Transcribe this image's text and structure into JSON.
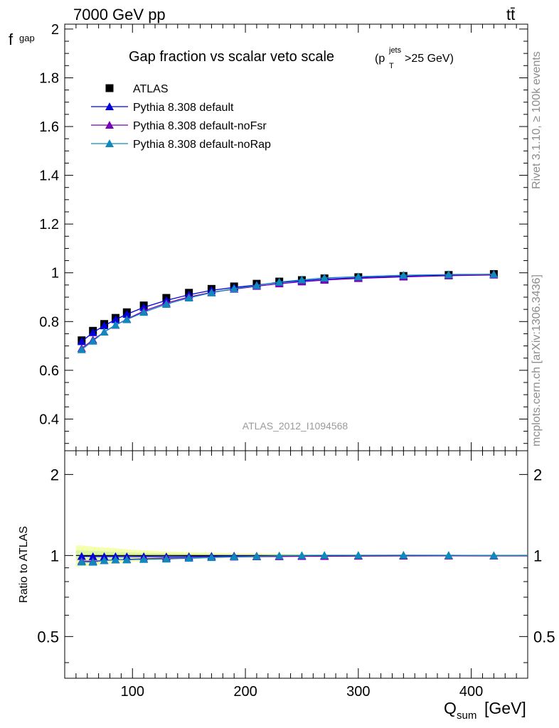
{
  "header": {
    "beam": "7000 GeV pp",
    "process": "tt̄"
  },
  "side_labels": {
    "rivet": "Rivet 3.1.10, ≥ 100k events",
    "mcplots": "mcplots.cern.ch [arXiv:1306.3436]"
  },
  "analysis_id": "ATLAS_2012_I1094568",
  "colors": {
    "data": "#000000",
    "default": "#0000dd",
    "noFsr": "#7700bb",
    "noRap": "#1188bb",
    "band_outer": "#f5ffb0",
    "band_inner": "#d8f7a0"
  },
  "chart_data": [
    {
      "type": "scatter",
      "title": "Gap fraction vs scalar veto scale",
      "title_cut": "(p",
      "title_cut_sup": "jets",
      "title_cut_sub": "T",
      "title_cut_tail": ">25 GeV)",
      "ylabel": "f",
      "ylabel_sub": "gap",
      "xlim": [
        40,
        450
      ],
      "ylim": [
        0.27,
        2.02
      ],
      "yticks": [
        0.4,
        0.6,
        0.8,
        1.0,
        1.2,
        1.4,
        1.6,
        1.8,
        2.0
      ],
      "ytick_labels": [
        "0.4",
        "0.6",
        "0.8",
        "1",
        "1.2",
        "1.4",
        "1.6",
        "1.8",
        "2"
      ],
      "grid": false,
      "legend_position": "top-left",
      "x": [
        55,
        65,
        75,
        85,
        95,
        110,
        130,
        150,
        170,
        190,
        210,
        230,
        250,
        270,
        300,
        340,
        380,
        420
      ],
      "series": [
        {
          "name": "ATLAS",
          "key": "data",
          "values": [
            0.723,
            0.762,
            0.79,
            0.815,
            0.838,
            0.866,
            0.897,
            0.918,
            0.934,
            0.944,
            0.955,
            0.964,
            0.97,
            0.977,
            0.982,
            0.987,
            0.991,
            0.995
          ]
        },
        {
          "name": "Pythia 8.308 default",
          "key": "default",
          "values": [
            0.718,
            0.755,
            0.783,
            0.808,
            0.83,
            0.858,
            0.887,
            0.91,
            0.928,
            0.94,
            0.95,
            0.96,
            0.967,
            0.974,
            0.98,
            0.986,
            0.99,
            0.994
          ]
        },
        {
          "name": "Pythia 8.308 default-noFsr",
          "key": "noFsr",
          "values": [
            0.69,
            0.725,
            0.757,
            0.785,
            0.81,
            0.843,
            0.876,
            0.901,
            0.92,
            0.933,
            0.945,
            0.955,
            0.963,
            0.97,
            0.977,
            0.983,
            0.988,
            0.991
          ]
        },
        {
          "name": "Pythia 8.308 default-noRap",
          "key": "noRap",
          "values": [
            0.685,
            0.72,
            0.757,
            0.786,
            0.808,
            0.838,
            0.871,
            0.897,
            0.918,
            0.935,
            0.948,
            0.962,
            0.971,
            0.979,
            0.984,
            0.99,
            0.993,
            0.994
          ]
        }
      ]
    },
    {
      "type": "line",
      "ylabel": "Ratio to ATLAS",
      "xlabel": "Q",
      "xlabel_sub": "sum",
      "xlabel_unit": "[GeV]",
      "xlim": [
        40,
        450
      ],
      "ylim": [
        0.35,
        2.45
      ],
      "log_y": true,
      "xticks": [
        100,
        200,
        300,
        400
      ],
      "xtick_labels": [
        "100",
        "200",
        "300",
        "400"
      ],
      "yticks": [
        0.5,
        1,
        2
      ],
      "ytick_labels": [
        "0.5",
        "1",
        "2"
      ],
      "x": [
        55,
        65,
        75,
        85,
        95,
        110,
        130,
        150,
        170,
        190,
        210,
        230,
        250,
        270,
        300,
        340,
        380,
        420
      ],
      "band_outer": [
        0.09,
        0.08,
        0.07,
        0.065,
        0.055,
        0.045,
        0.035,
        0.03,
        0.025,
        0.02,
        0.018,
        0.015,
        0.012,
        0.01,
        0.01,
        0.008,
        0.007,
        0.006
      ],
      "band_inner": [
        0.045,
        0.04,
        0.035,
        0.03,
        0.027,
        0.022,
        0.018,
        0.015,
        0.012,
        0.01,
        0.009,
        0.008,
        0.006,
        0.005,
        0.005,
        0.004,
        0.004,
        0.003
      ],
      "series": [
        {
          "name": "Pythia 8.308 default",
          "key": "default",
          "values": [
            0.993,
            0.991,
            0.991,
            0.991,
            0.99,
            0.991,
            0.989,
            0.991,
            0.994,
            0.996,
            0.995,
            0.996,
            0.997,
            0.997,
            0.998,
            0.999,
            0.999,
            0.999
          ]
        },
        {
          "name": "Pythia 8.308 default-noFsr",
          "key": "noFsr",
          "values": [
            0.954,
            0.952,
            0.958,
            0.963,
            0.967,
            0.973,
            0.977,
            0.981,
            0.985,
            0.988,
            0.99,
            0.991,
            0.993,
            0.993,
            0.995,
            0.996,
            0.997,
            0.996
          ]
        },
        {
          "name": "Pythia 8.308 default-noRap",
          "key": "noRap",
          "values": [
            0.947,
            0.945,
            0.958,
            0.964,
            0.964,
            0.968,
            0.971,
            0.977,
            0.983,
            0.99,
            0.993,
            0.998,
            1.001,
            1.002,
            1.002,
            1.003,
            1.002,
            0.999
          ]
        }
      ]
    }
  ]
}
